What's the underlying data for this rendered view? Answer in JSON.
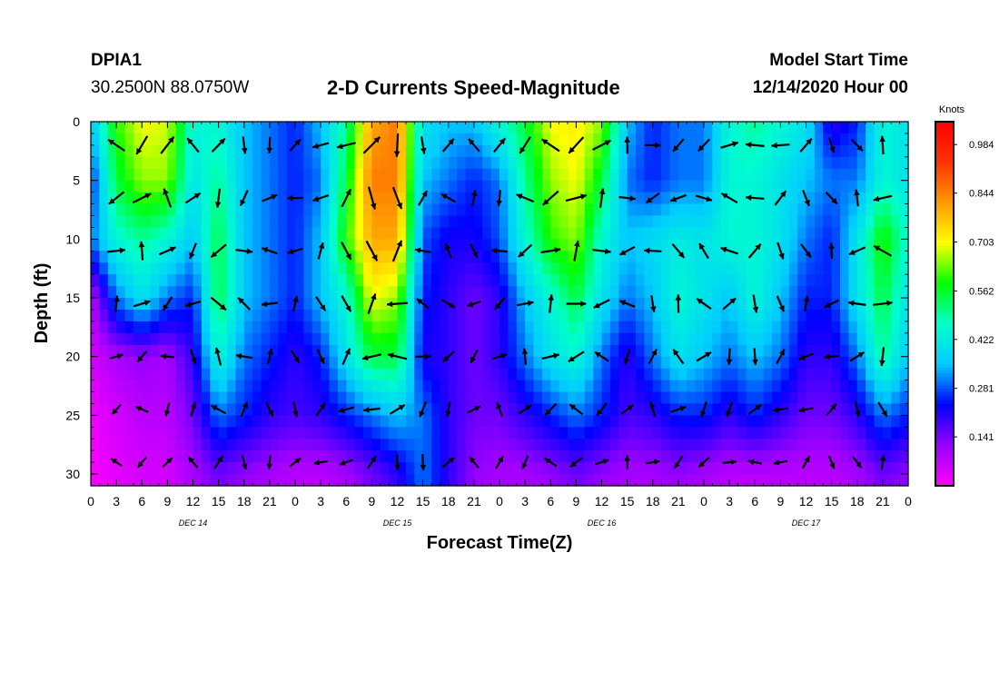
{
  "header": {
    "station": "DPIA1",
    "coordinates": "30.2500N 88.0750W",
    "title": "2-D Currents Speed-Magnitude",
    "model_start_label": "Model Start Time",
    "model_start_value": "12/14/2020 Hour 00"
  },
  "chart_data": {
    "type": "heatmap",
    "title": "2-D Currents Speed-Magnitude",
    "xlabel": "Forecast Time(Z)",
    "ylabel": "Depth (ft)",
    "x_tick_labels": [
      "0",
      "3",
      "6",
      "9",
      "12",
      "15",
      "18",
      "21",
      "0",
      "3",
      "6",
      "9",
      "12",
      "15",
      "18",
      "21",
      "0",
      "3",
      "6",
      "9",
      "12",
      "15",
      "18",
      "21",
      "0",
      "3",
      "6",
      "9",
      "12",
      "15",
      "18",
      "21",
      "0"
    ],
    "x_range_hours": [
      0,
      96
    ],
    "date_labels": [
      {
        "hour": 12,
        "label": "DEC 14"
      },
      {
        "hour": 36,
        "label": "DEC 15"
      },
      {
        "hour": 60,
        "label": "DEC 16"
      },
      {
        "hour": 84,
        "label": "DEC 17"
      }
    ],
    "y_ticks": [
      0,
      5,
      10,
      15,
      20,
      25,
      30
    ],
    "y_range": [
      0,
      31
    ],
    "y_reversed": true,
    "colorbar": {
      "unit": "Knots",
      "tick_values": [
        0.141,
        0.281,
        0.422,
        0.562,
        0.703,
        0.844,
        0.984
      ],
      "tick_labels": [
        "0.141",
        "0.281",
        "0.422",
        "0.562",
        "0.703",
        "0.844",
        "0.984"
      ],
      "range": [
        0,
        1.05
      ],
      "colors": [
        "#ff00ff",
        "#9900ff",
        "#0000ff",
        "#00ccff",
        "#00ffcc",
        "#00ff00",
        "#ffff00",
        "#ff9900",
        "#ff3300",
        "#ff0000"
      ]
    },
    "speed_field": {
      "hours": [
        0,
        3,
        6,
        9,
        12,
        15,
        18,
        21,
        24,
        27,
        30,
        33,
        36,
        39,
        42,
        45,
        48,
        51,
        54,
        57,
        60,
        63,
        66,
        69,
        72,
        75,
        78,
        81,
        84,
        87,
        90,
        93,
        96
      ],
      "depths_ft": [
        0,
        5,
        10,
        15,
        20,
        25,
        30
      ],
      "values_knots": [
        [
          0.35,
          0.6,
          0.7,
          0.68,
          0.45,
          0.45,
          0.35,
          0.3,
          0.25,
          0.35,
          0.5,
          0.8,
          0.85,
          0.4,
          0.35,
          0.35,
          0.45,
          0.55,
          0.7,
          0.72,
          0.65,
          0.35,
          0.25,
          0.3,
          0.3,
          0.45,
          0.5,
          0.45,
          0.4,
          0.2,
          0.25,
          0.45,
          0.4
        ],
        [
          0.25,
          0.55,
          0.65,
          0.65,
          0.4,
          0.5,
          0.35,
          0.3,
          0.25,
          0.3,
          0.55,
          0.85,
          0.85,
          0.35,
          0.3,
          0.25,
          0.3,
          0.5,
          0.65,
          0.7,
          0.55,
          0.3,
          0.25,
          0.3,
          0.3,
          0.45,
          0.45,
          0.4,
          0.35,
          0.3,
          0.3,
          0.45,
          0.4
        ],
        [
          0.3,
          0.45,
          0.5,
          0.45,
          0.35,
          0.55,
          0.35,
          0.3,
          0.25,
          0.35,
          0.6,
          0.8,
          0.8,
          0.28,
          0.22,
          0.22,
          0.28,
          0.45,
          0.6,
          0.65,
          0.45,
          0.35,
          0.38,
          0.42,
          0.4,
          0.45,
          0.45,
          0.4,
          0.3,
          0.25,
          0.4,
          0.6,
          0.45
        ],
        [
          0.08,
          0.3,
          0.4,
          0.3,
          0.25,
          0.55,
          0.35,
          0.3,
          0.25,
          0.35,
          0.45,
          0.7,
          0.65,
          0.25,
          0.2,
          0.15,
          0.2,
          0.35,
          0.45,
          0.55,
          0.4,
          0.3,
          0.35,
          0.45,
          0.4,
          0.35,
          0.45,
          0.35,
          0.25,
          0.25,
          0.4,
          0.55,
          0.4
        ],
        [
          0.05,
          0.1,
          0.12,
          0.1,
          0.2,
          0.45,
          0.3,
          0.25,
          0.2,
          0.25,
          0.4,
          0.55,
          0.55,
          0.22,
          0.2,
          0.15,
          0.2,
          0.3,
          0.4,
          0.45,
          0.3,
          0.2,
          0.3,
          0.4,
          0.35,
          0.3,
          0.35,
          0.3,
          0.2,
          0.2,
          0.3,
          0.5,
          0.35
        ],
        [
          0.02,
          0.05,
          0.08,
          0.08,
          0.15,
          0.3,
          0.25,
          0.2,
          0.18,
          0.2,
          0.25,
          0.3,
          0.35,
          0.3,
          0.2,
          0.15,
          0.15,
          0.2,
          0.25,
          0.3,
          0.25,
          0.18,
          0.2,
          0.25,
          0.25,
          0.2,
          0.25,
          0.2,
          0.15,
          0.15,
          0.2,
          0.3,
          0.25
        ],
        [
          0.01,
          0.03,
          0.05,
          0.05,
          0.1,
          0.15,
          0.12,
          0.1,
          0.08,
          0.08,
          0.1,
          0.15,
          0.2,
          0.3,
          0.2,
          0.12,
          0.1,
          0.1,
          0.12,
          0.15,
          0.12,
          0.1,
          0.1,
          0.12,
          0.1,
          0.08,
          0.08,
          0.08,
          0.08,
          0.08,
          0.1,
          0.15,
          0.12
        ]
      ]
    },
    "vectors_note": "",
    "grid": false
  }
}
